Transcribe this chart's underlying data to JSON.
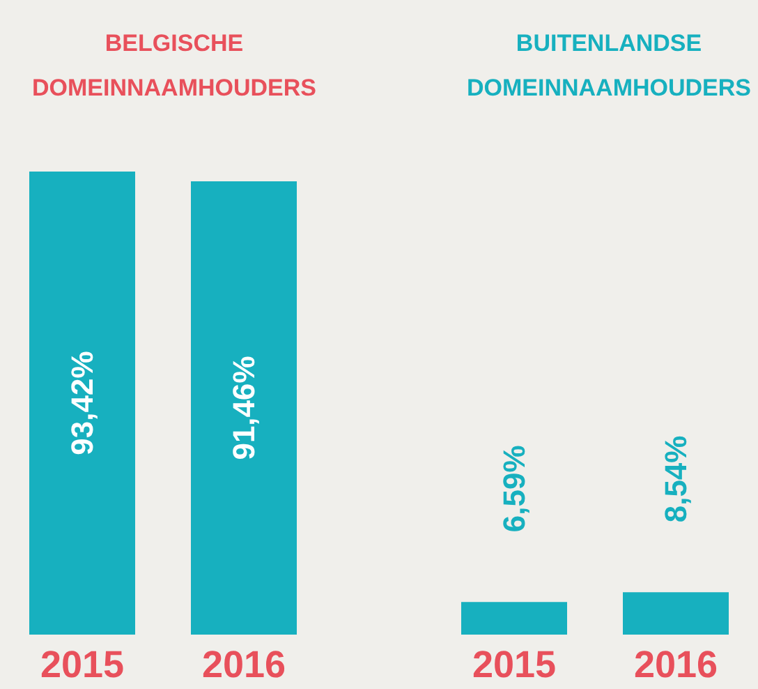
{
  "chart_data": [
    {
      "type": "bar",
      "title": "BELGISCHE\nDOMEINNAAMHOUDERS",
      "categories": [
        "2015",
        "2016"
      ],
      "values": [
        93.42,
        91.46
      ],
      "value_labels": [
        "93,42%",
        "91,46%"
      ],
      "color": "#17b0bf"
    },
    {
      "type": "bar",
      "title": "BUITENLANDSE\nDOMEINNAAMHOUDERS",
      "categories": [
        "2015",
        "2016"
      ],
      "values": [
        6.59,
        8.54
      ],
      "value_labels": [
        "6,59%",
        "8,54%"
      ],
      "color": "#17b0bf"
    }
  ]
}
